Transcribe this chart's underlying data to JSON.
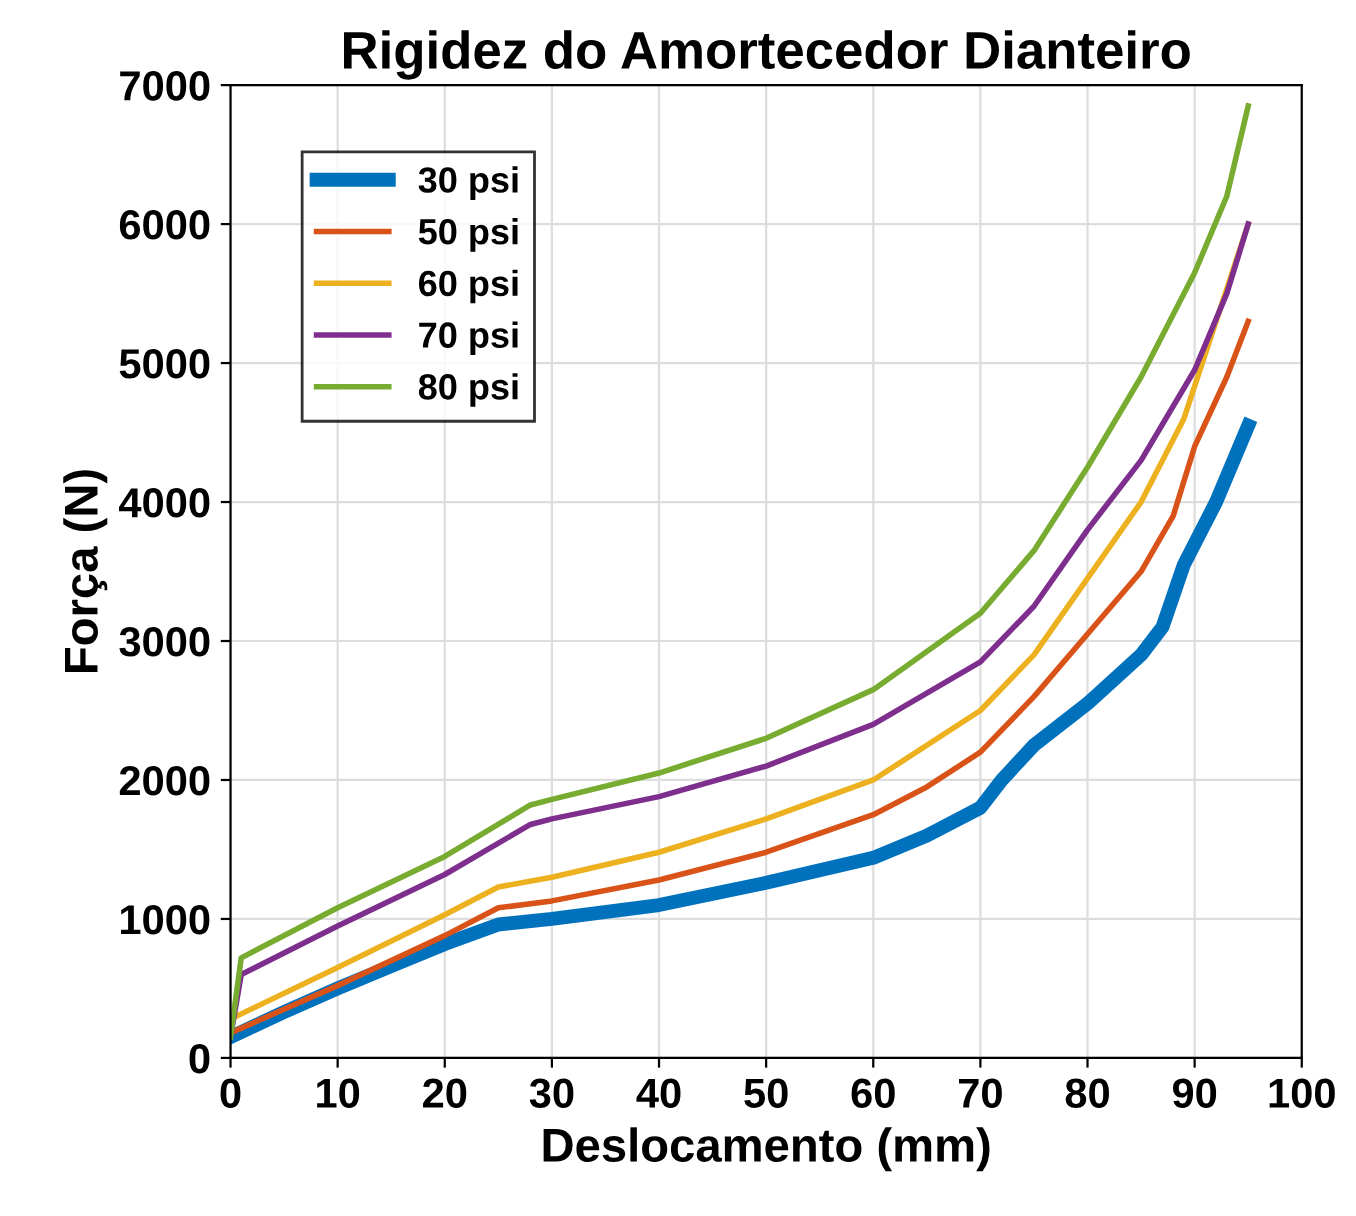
{
  "chart_data": {
    "type": "line",
    "title": "Rigidez do Amortecedor Dianteiro",
    "xlabel": "Deslocamento (mm)",
    "ylabel": "Força (N)",
    "xlim": [
      0,
      100
    ],
    "xticks": [
      0,
      10,
      20,
      30,
      40,
      50,
      60,
      70,
      80,
      90,
      100
    ],
    "ylim": [
      0,
      7000
    ],
    "yticks": [
      0,
      1000,
      2000,
      3000,
      4000,
      5000,
      6000,
      7000
    ],
    "grid": true,
    "legend": "top left",
    "marker": "none",
    "line_style": "solid",
    "series": [
      {
        "name": "30 psi",
        "color": "#0072bd",
        "x": [
          0,
          5,
          10,
          15,
          20,
          25,
          30,
          40,
          50,
          60,
          65,
          70,
          72,
          75,
          80,
          85,
          87,
          89,
          92,
          95
        ],
        "values": [
          150,
          330,
          500,
          660,
          820,
          960,
          1000,
          1100,
          1260,
          1440,
          1600,
          1800,
          2000,
          2250,
          2550,
          2900,
          3100,
          3550,
          4000,
          4550
        ]
      },
      {
        "name": "50 psi",
        "color": "#d95319",
        "x": [
          0,
          10,
          20,
          25,
          30,
          40,
          50,
          60,
          65,
          70,
          75,
          80,
          85,
          88,
          90,
          93,
          95
        ],
        "values": [
          180,
          520,
          880,
          1080,
          1130,
          1280,
          1480,
          1750,
          1950,
          2200,
          2600,
          3050,
          3500,
          3900,
          4400,
          4900,
          5300
        ]
      },
      {
        "name": "60 psi",
        "color": "#edb120",
        "x": [
          0,
          10,
          20,
          25,
          30,
          40,
          50,
          60,
          70,
          75,
          80,
          85,
          89,
          92,
          95
        ],
        "values": [
          280,
          650,
          1030,
          1230,
          1300,
          1480,
          1720,
          2000,
          2500,
          2900,
          3450,
          4000,
          4600,
          5300,
          6000
        ]
      },
      {
        "name": "70 psi",
        "color": "#7e2f8e",
        "x": [
          0,
          1,
          10,
          20,
          28,
          30,
          40,
          50,
          60,
          70,
          75,
          80,
          85,
          90,
          93,
          95
        ],
        "values": [
          150,
          600,
          950,
          1320,
          1680,
          1720,
          1880,
          2100,
          2400,
          2850,
          3250,
          3800,
          4300,
          4950,
          5500,
          6000
        ]
      },
      {
        "name": "80 psi",
        "color": "#77ac30",
        "x": [
          0,
          1,
          10,
          20,
          28,
          30,
          40,
          50,
          60,
          70,
          75,
          80,
          85,
          90,
          93,
          95
        ],
        "values": [
          150,
          720,
          1080,
          1450,
          1820,
          1860,
          2050,
          2300,
          2650,
          3200,
          3650,
          4250,
          4900,
          5650,
          6200,
          6850
        ]
      }
    ]
  }
}
